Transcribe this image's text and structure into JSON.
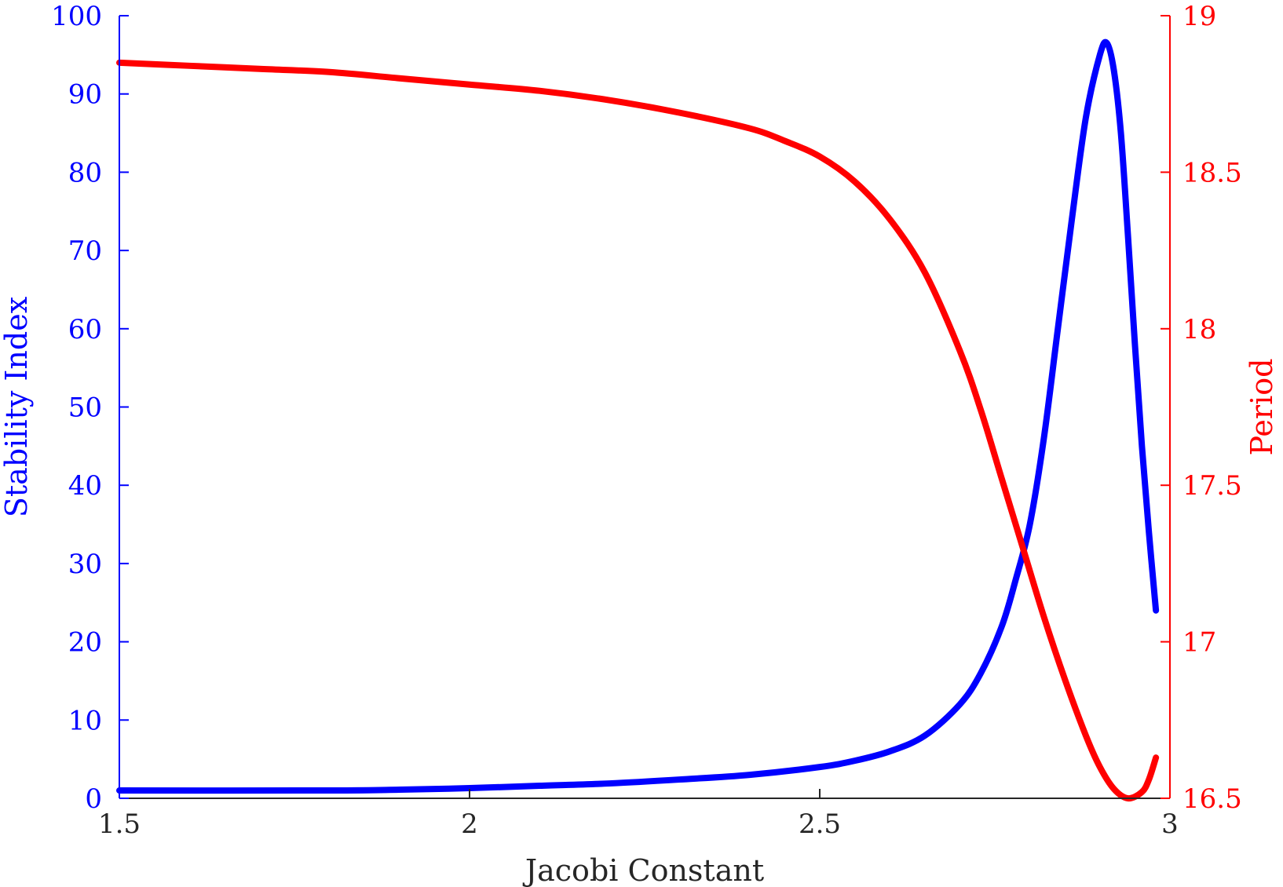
{
  "chart_data": {
    "type": "line",
    "title": "",
    "xlabel": "Jacobi Constant",
    "ylabel_left": "Stability Index",
    "ylabel_right": "Period",
    "xlim": [
      1.5,
      3.0
    ],
    "ylim_left": [
      0,
      100
    ],
    "ylim_right": [
      16.5,
      19.0
    ],
    "xticks": [
      "1.5",
      "2",
      "2.5",
      "3"
    ],
    "yticks_left": [
      "0",
      "10",
      "20",
      "30",
      "40",
      "50",
      "60",
      "70",
      "80",
      "90",
      "100"
    ],
    "yticks_right": [
      "16.5",
      "17",
      "17.5",
      "18",
      "18.5",
      "19"
    ],
    "grid": false,
    "legend": "none",
    "colors": {
      "left": "#0000ff",
      "right": "#ff0000",
      "axis": "#262626"
    },
    "series": [
      {
        "axis": "left",
        "x": [
          1.5,
          1.8,
          1.9,
          2.0,
          2.1,
          2.2,
          2.3,
          2.4,
          2.5,
          2.55,
          2.6,
          2.65,
          2.7,
          2.73,
          2.76,
          2.78,
          2.8,
          2.82,
          2.84,
          2.86,
          2.88,
          2.9,
          2.91,
          2.92,
          2.93,
          2.94,
          2.95,
          2.96,
          2.97,
          2.98
        ],
        "y": [
          1,
          1,
          1.1,
          1.3,
          1.6,
          1.9,
          2.4,
          3.0,
          4.0,
          4.8,
          6.0,
          8.0,
          12.0,
          16.0,
          22.0,
          28.0,
          35.0,
          46.0,
          60.0,
          74.0,
          87.0,
          95.0,
          96.5,
          93.0,
          85.0,
          72.0,
          58.0,
          45.0,
          34.0,
          24.0
        ]
      },
      {
        "axis": "right",
        "x": [
          1.5,
          1.6,
          1.7,
          1.8,
          1.9,
          2.0,
          2.1,
          2.2,
          2.3,
          2.4,
          2.45,
          2.5,
          2.55,
          2.6,
          2.65,
          2.7,
          2.73,
          2.76,
          2.79,
          2.82,
          2.85,
          2.88,
          2.9,
          2.92,
          2.94,
          2.96,
          2.97,
          2.98
        ],
        "y": [
          18.85,
          18.84,
          18.83,
          18.82,
          18.8,
          18.78,
          18.76,
          18.73,
          18.69,
          18.64,
          18.6,
          18.55,
          18.47,
          18.35,
          18.18,
          17.93,
          17.74,
          17.52,
          17.3,
          17.08,
          16.88,
          16.7,
          16.6,
          16.53,
          16.5,
          16.52,
          16.56,
          16.63
        ]
      }
    ]
  }
}
